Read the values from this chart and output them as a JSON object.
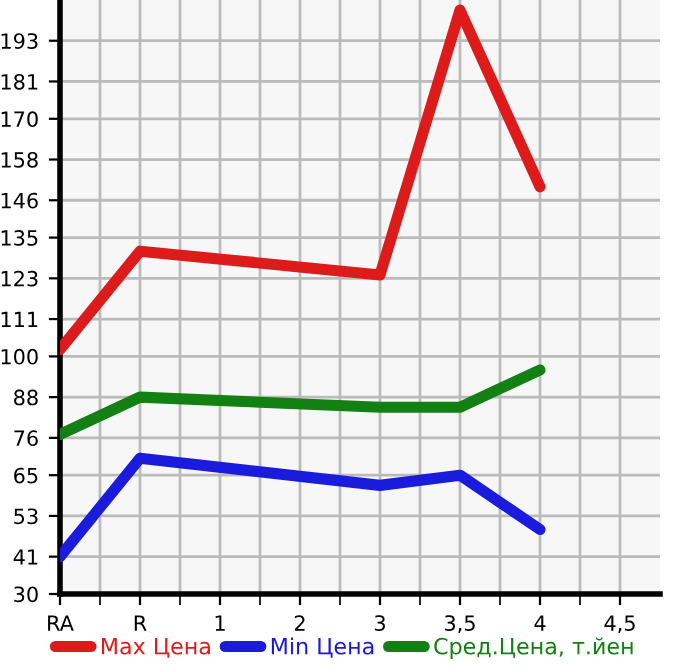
{
  "chart_data": {
    "type": "line",
    "categories": [
      "RA",
      "R",
      "1",
      "2",
      "3",
      "3,5",
      "4",
      "4,5"
    ],
    "series": [
      {
        "name": "Max Цена",
        "color": "#dd1b1b",
        "values": [
          102,
          131,
          null,
          null,
          124,
          202,
          150,
          null
        ]
      },
      {
        "name": "Min Цена",
        "color": "#1b1bdd",
        "values": [
          41,
          70,
          null,
          null,
          62,
          65,
          49,
          null
        ]
      },
      {
        "name": "Сред.Цена, т.йен",
        "color": "#138013",
        "values": [
          77,
          88,
          null,
          null,
          85,
          85,
          96,
          null
        ]
      }
    ],
    "ylim": [
      30,
      205
    ],
    "yticks": [
      30,
      41,
      53,
      65,
      76,
      88,
      100,
      111,
      123,
      135,
      146,
      158,
      170,
      181,
      193
    ],
    "grid": true,
    "legend": "bottom",
    "marker": "none",
    "line_style": "solid"
  }
}
